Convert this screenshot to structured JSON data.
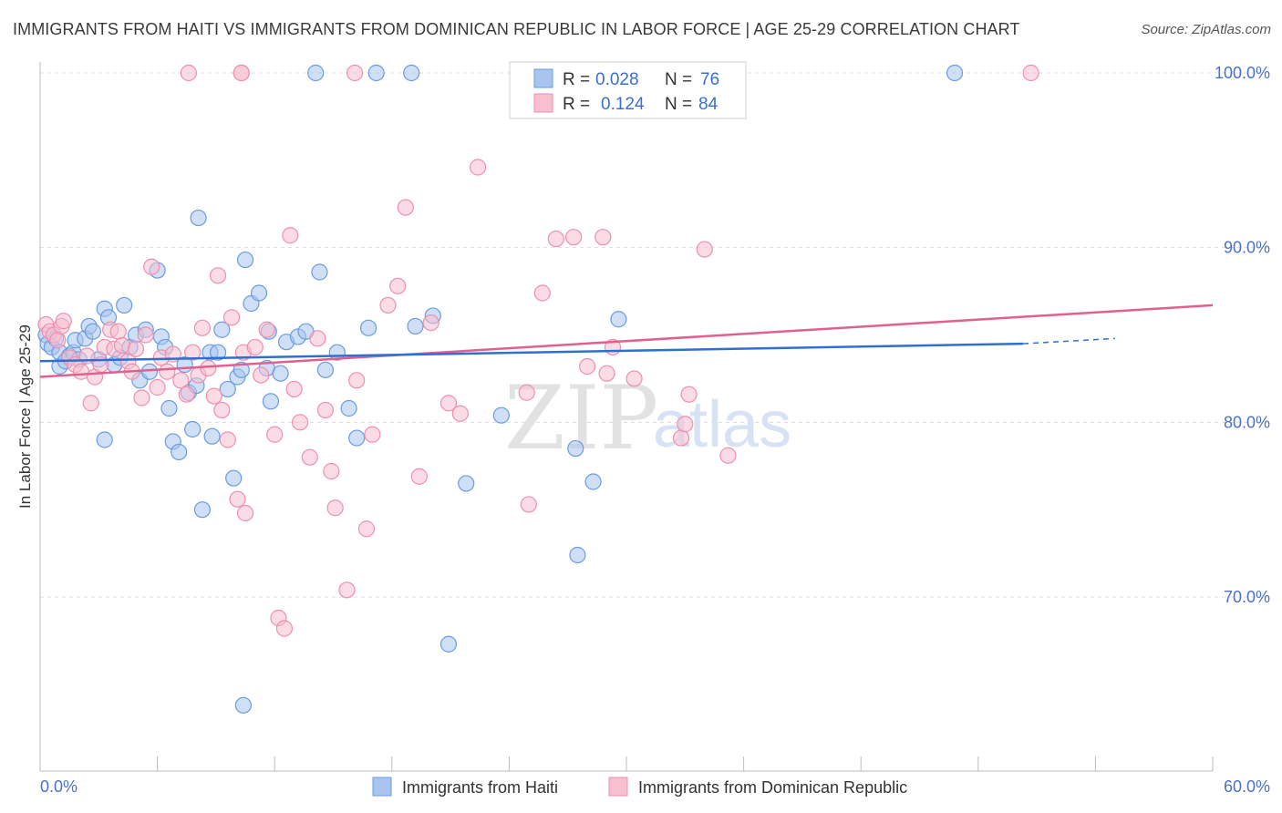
{
  "title": "IMMIGRANTS FROM HAITI VS IMMIGRANTS FROM DOMINICAN REPUBLIC IN LABOR FORCE | AGE 25-29 CORRELATION CHART",
  "source": "Source: ZipAtlas.com",
  "watermark": {
    "zip": "ZIP",
    "atlas": "atlas"
  },
  "colors": {
    "haiti_fill": "#a8c4ef",
    "haiti_stroke": "#6b9be0",
    "haiti_line": "#2f6fd1",
    "dr_fill": "#f7bfd0",
    "dr_stroke": "#ee8fae",
    "dr_line": "#e0608f",
    "grid": "#dcdcdc",
    "tick_label": "#4a72c8"
  },
  "legend": {
    "rows": [
      {
        "r_label": "R =",
        "r_value": "0.028",
        "n_label": "N =",
        "n_value": "76"
      },
      {
        "r_label": "R =",
        "r_value": "0.124",
        "n_label": "N =",
        "n_value": "84"
      }
    ]
  },
  "chart_data": {
    "type": "scatter",
    "title": "IMMIGRANTS FROM HAITI VS IMMIGRANTS FROM DOMINICAN REPUBLIC IN LABOR FORCE | AGE 25-29 CORRELATION CHART",
    "xlabel": "",
    "ylabel": "In Labor Force | Age 25-29",
    "xlim": [
      0,
      60
    ],
    "ylim": [
      60,
      101.5
    ],
    "x_tick_labels": [
      "0.0%",
      "60.0%"
    ],
    "y_ticks": [
      70,
      80,
      90,
      100
    ],
    "y_tick_labels": [
      "70.0%",
      "80.0%",
      "90.0%",
      "100.0%"
    ],
    "grid": true,
    "legend_position": "top-center",
    "series": [
      {
        "name": "Immigrants from Haiti",
        "r": 0.028,
        "n": 76,
        "trend": {
          "x0": 0,
          "y0": 83.5,
          "x1": 50.3,
          "y1": 84.5,
          "dash_to_x": 55,
          "dash_to_y": 84.8
        },
        "points": [
          [
            0.3,
            85.0
          ],
          [
            0.4,
            84.5
          ],
          [
            0.6,
            84.3
          ],
          [
            0.8,
            84.8
          ],
          [
            1.0,
            84.0
          ],
          [
            1.0,
            83.2
          ],
          [
            1.3,
            83.5
          ],
          [
            1.5,
            83.8
          ],
          [
            1.7,
            84.0
          ],
          [
            1.8,
            84.7
          ],
          [
            2.0,
            83.6
          ],
          [
            2.3,
            84.8
          ],
          [
            2.5,
            85.5
          ],
          [
            2.7,
            85.2
          ],
          [
            3.0,
            83.6
          ],
          [
            3.3,
            86.5
          ],
          [
            3.5,
            86.0
          ],
          [
            3.3,
            79.0
          ],
          [
            3.8,
            83.3
          ],
          [
            4.1,
            83.7
          ],
          [
            4.3,
            86.7
          ],
          [
            4.6,
            84.3
          ],
          [
            4.9,
            85.0
          ],
          [
            5.1,
            82.4
          ],
          [
            5.4,
            85.3
          ],
          [
            5.6,
            82.9
          ],
          [
            6.0,
            88.7
          ],
          [
            6.2,
            84.9
          ],
          [
            6.4,
            84.3
          ],
          [
            6.6,
            80.8
          ],
          [
            6.8,
            78.9
          ],
          [
            7.1,
            78.3
          ],
          [
            7.4,
            83.3
          ],
          [
            7.6,
            81.7
          ],
          [
            7.8,
            79.6
          ],
          [
            8.0,
            82.1
          ],
          [
            8.1,
            91.7
          ],
          [
            8.3,
            75.0
          ],
          [
            8.7,
            84.0
          ],
          [
            8.8,
            79.2
          ],
          [
            9.1,
            84.0
          ],
          [
            9.3,
            85.3
          ],
          [
            9.6,
            81.9
          ],
          [
            9.9,
            76.8
          ],
          [
            10.1,
            82.6
          ],
          [
            10.3,
            83.0
          ],
          [
            10.4,
            63.8
          ],
          [
            10.5,
            89.3
          ],
          [
            10.8,
            86.8
          ],
          [
            11.2,
            87.4
          ],
          [
            11.6,
            83.1
          ],
          [
            11.8,
            81.2
          ],
          [
            11.7,
            85.2
          ],
          [
            12.3,
            82.8
          ],
          [
            12.6,
            84.6
          ],
          [
            13.2,
            84.9
          ],
          [
            13.6,
            85.2
          ],
          [
            14.3,
            88.6
          ],
          [
            14.6,
            83.0
          ],
          [
            15.2,
            84.0
          ],
          [
            15.8,
            80.8
          ],
          [
            16.2,
            79.1
          ],
          [
            16.8,
            85.4
          ],
          [
            17.2,
            100.0
          ],
          [
            19.0,
            100.0
          ],
          [
            19.2,
            85.5
          ],
          [
            20.1,
            86.1
          ],
          [
            20.9,
            67.3
          ],
          [
            21.8,
            76.5
          ],
          [
            23.6,
            80.4
          ],
          [
            27.4,
            78.5
          ],
          [
            27.5,
            72.4
          ],
          [
            28.3,
            76.6
          ],
          [
            29.6,
            85.9
          ],
          [
            14.1,
            100.0
          ],
          [
            46.8,
            100.0
          ]
        ]
      },
      {
        "name": "Immigrants from Dominican Republic",
        "r": 0.124,
        "n": 84,
        "trend": {
          "x0": 0,
          "y0": 82.6,
          "x1": 60,
          "y1": 86.7
        },
        "points": [
          [
            0.3,
            85.6
          ],
          [
            0.5,
            85.2
          ],
          [
            0.7,
            85.0
          ],
          [
            0.9,
            84.7
          ],
          [
            1.1,
            85.5
          ],
          [
            1.2,
            85.8
          ],
          [
            1.5,
            83.7
          ],
          [
            1.8,
            83.3
          ],
          [
            2.1,
            82.9
          ],
          [
            2.4,
            83.8
          ],
          [
            2.6,
            81.1
          ],
          [
            2.8,
            82.6
          ],
          [
            3.1,
            83.3
          ],
          [
            3.3,
            84.3
          ],
          [
            3.6,
            85.3
          ],
          [
            3.8,
            84.2
          ],
          [
            4.0,
            85.2
          ],
          [
            4.2,
            84.4
          ],
          [
            4.5,
            83.5
          ],
          [
            4.7,
            82.9
          ],
          [
            4.9,
            84.2
          ],
          [
            5.2,
            81.4
          ],
          [
            5.4,
            85.0
          ],
          [
            5.7,
            88.9
          ],
          [
            6.0,
            82.0
          ],
          [
            6.2,
            83.7
          ],
          [
            6.5,
            82.9
          ],
          [
            6.8,
            83.9
          ],
          [
            7.2,
            82.4
          ],
          [
            7.5,
            81.6
          ],
          [
            7.8,
            84.0
          ],
          [
            8.1,
            82.7
          ],
          [
            8.3,
            85.4
          ],
          [
            8.6,
            83.1
          ],
          [
            8.9,
            81.5
          ],
          [
            9.1,
            88.4
          ],
          [
            9.3,
            80.7
          ],
          [
            9.6,
            79.0
          ],
          [
            9.8,
            86.0
          ],
          [
            10.1,
            75.6
          ],
          [
            10.4,
            84.0
          ],
          [
            10.5,
            74.8
          ],
          [
            11.0,
            84.3
          ],
          [
            11.3,
            82.7
          ],
          [
            11.6,
            85.3
          ],
          [
            12.0,
            79.3
          ],
          [
            12.2,
            68.8
          ],
          [
            12.5,
            68.2
          ],
          [
            12.8,
            90.7
          ],
          [
            13.0,
            81.9
          ],
          [
            13.3,
            80.0
          ],
          [
            13.8,
            78.0
          ],
          [
            14.2,
            84.8
          ],
          [
            14.6,
            80.7
          ],
          [
            14.9,
            77.2
          ],
          [
            15.1,
            75.1
          ],
          [
            15.7,
            70.4
          ],
          [
            16.2,
            82.4
          ],
          [
            16.7,
            73.9
          ],
          [
            17.0,
            79.3
          ],
          [
            17.8,
            86.7
          ],
          [
            18.3,
            87.8
          ],
          [
            18.7,
            92.3
          ],
          [
            19.4,
            76.9
          ],
          [
            20.0,
            85.7
          ],
          [
            20.9,
            81.1
          ],
          [
            21.5,
            80.5
          ],
          [
            22.4,
            94.6
          ],
          [
            24.9,
            81.7
          ],
          [
            25.0,
            75.3
          ],
          [
            25.7,
            87.4
          ],
          [
            26.4,
            90.5
          ],
          [
            27.3,
            90.6
          ],
          [
            28.0,
            83.2
          ],
          [
            28.8,
            90.6
          ],
          [
            29.0,
            82.8
          ],
          [
            29.3,
            84.3
          ],
          [
            30.4,
            82.5
          ],
          [
            32.8,
            79.1
          ],
          [
            33.0,
            79.9
          ],
          [
            33.2,
            81.6
          ],
          [
            34.0,
            89.9
          ],
          [
            35.2,
            78.1
          ],
          [
            10.3,
            100.0
          ]
        ]
      }
    ],
    "extra_dr_points": [
      [
        7.6,
        100.0
      ],
      [
        10.3,
        100.0
      ],
      [
        16.1,
        100.0
      ],
      [
        50.7,
        100.0
      ]
    ]
  },
  "axis": {
    "ylabel": "In Labor Force | Age 25-29",
    "x_left": "0.0%",
    "x_right": "60.0%"
  },
  "bottom_legend": {
    "haiti": "Immigrants from Haiti",
    "dr": "Immigrants from Dominican Republic"
  }
}
